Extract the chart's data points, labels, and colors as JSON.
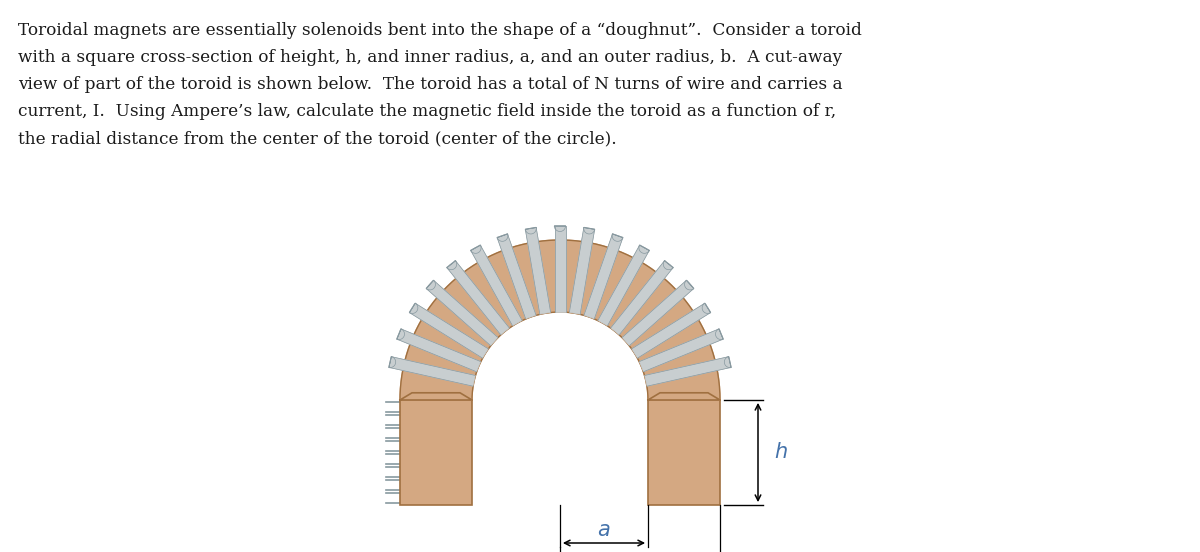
{
  "bg_color": "#ffffff",
  "text_color": "#1a1a1a",
  "label_color": "#4472aa",
  "toroid_fill": "#d4a882",
  "toroid_edge": "#a07040",
  "coil_fill": "#c8ced0",
  "coil_edge": "#8899a0",
  "n_coils": 17,
  "paragraph_lines": [
    "Toroidal magnets are essentially solenoids bent into the shape of a “doughnut”.  Consider a toroid",
    "with a square cross-section of height, h, and inner radius, a, and an outer radius, b.  A cut-away",
    "view of part of the toroid is shown below.  The toroid has a total of N turns of wire and carries a",
    "current, I.  Using Ampere’s law, calculate the magnetic field inside the toroid as a function of r,",
    "the radial distance from the center of the toroid (center of the circle)."
  ]
}
